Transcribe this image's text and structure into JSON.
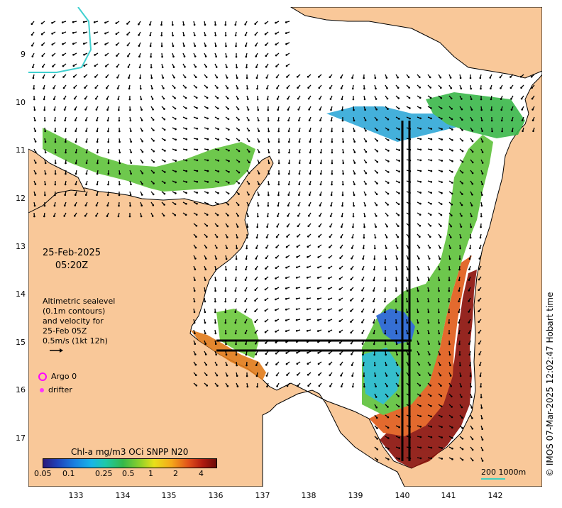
{
  "map": {
    "date": "25-Feb-2025",
    "time": "05:20Z",
    "x_ticks": [
      "133",
      "134",
      "135",
      "136",
      "137",
      "138",
      "139",
      "140",
      "141",
      "142"
    ],
    "y_ticks": [
      "9",
      "10",
      "11",
      "12",
      "13",
      "14",
      "15",
      "16",
      "17"
    ],
    "legend_lines": [
      "Altimetric sealevel",
      "(0.1m contours)",
      "and velocity for",
      "25-Feb 05Z",
      "0.5m/s (1kt 12h)"
    ],
    "argo_label": "Argo 0",
    "drifter_label": "drifter",
    "colorbar_title": "Chl-a mg/m3 OCi SNPP N20",
    "colorbar_ticks": [
      "0.05",
      "0.1",
      "0.25",
      "0.5",
      "1",
      "2",
      "4"
    ],
    "scale_label": "200  1000m",
    "credit": "© IMOS 07-Mar-2025 12:02:47 Hobart time",
    "colors": {
      "land": "#f9c899",
      "ocean": "#ffffff",
      "contour": "#40d0d0",
      "argo": "#ff00ff"
    }
  }
}
